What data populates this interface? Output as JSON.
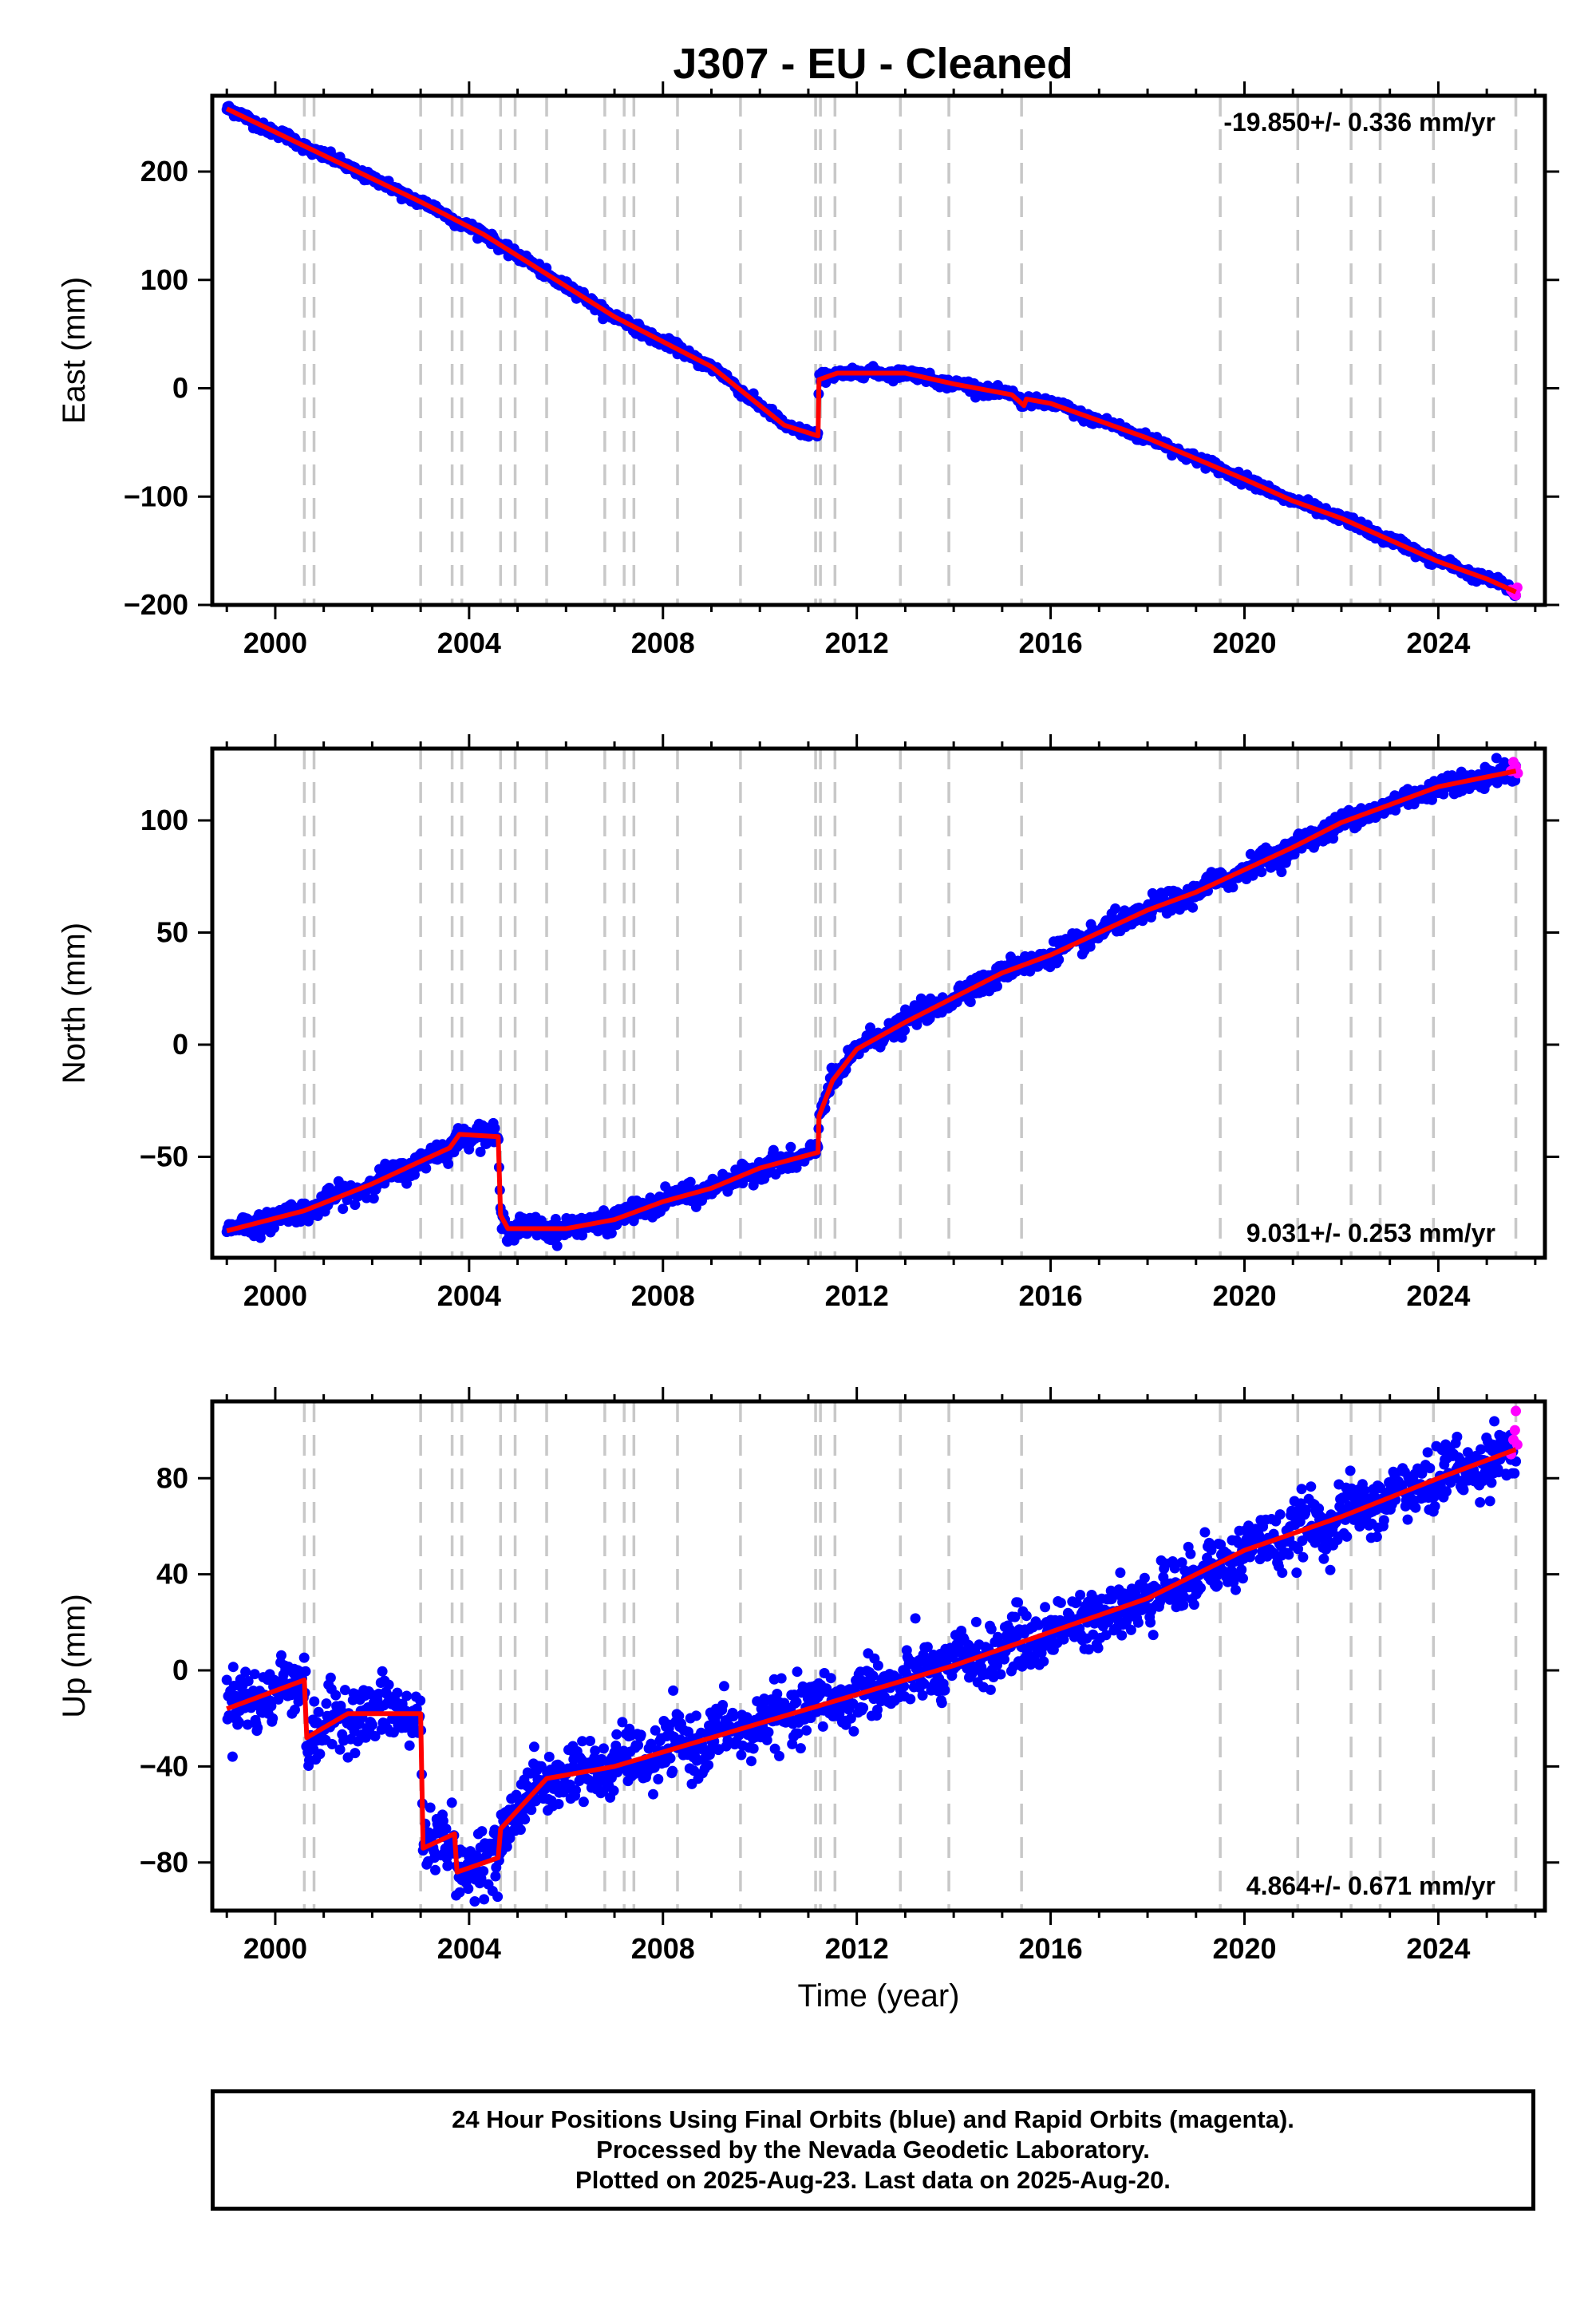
{
  "title": "J307  - EU - Cleaned",
  "footer": {
    "line1": "24 Hour Positions Using Final Orbits (blue) and Rapid Orbits (magenta).",
    "line2": "Processed by the Nevada Geodetic Laboratory.",
    "line3": "Plotted on 2025-Aug-23. Last data on 2025-Aug-20."
  },
  "colors": {
    "final": "#0000ff",
    "rapid": "#ff00ff",
    "model": "#ff0000",
    "events": "#c8c8c8",
    "axes": "#000000"
  },
  "chart_data": [
    {
      "type": "scatter",
      "component": "east",
      "ylabel": "East (mm)",
      "xlabel": "",
      "xlim": [
        1998.7,
        2026.2
      ],
      "ylim": [
        -200,
        270
      ],
      "x_ticks": [
        2000,
        2004,
        2008,
        2012,
        2016,
        2020,
        2024
      ],
      "x_tick_labels": [
        "2000",
        "2004",
        "2008",
        "2012",
        "2016",
        "2020",
        "2024"
      ],
      "y_ticks": [
        -200,
        -100,
        0,
        100,
        200
      ],
      "y_tick_labels": [
        "−200",
        "−100",
        "0",
        "100",
        "200"
      ],
      "rate": "-19.850+/- 0.336 mm/yr",
      "rate_position": "top-right",
      "model_breakpoints": [
        [
          1999.0,
          258
        ],
        [
          2003.0,
          172
        ],
        [
          2004.3,
          142
        ],
        [
          2007.0,
          66
        ],
        [
          2009.0,
          20
        ],
        [
          2010.5,
          -34
        ],
        [
          2011.2,
          -44
        ],
        [
          2011.22,
          8
        ],
        [
          2011.6,
          14
        ],
        [
          2012.2,
          14
        ],
        [
          2013.0,
          14
        ],
        [
          2014.0,
          4
        ],
        [
          2015.2,
          -6
        ],
        [
          2015.45,
          -16
        ],
        [
          2015.5,
          -10
        ],
        [
          2016.0,
          -14
        ],
        [
          2017.0,
          -30
        ],
        [
          2018.0,
          -46
        ],
        [
          2020.0,
          -84
        ],
        [
          2021.0,
          -104
        ],
        [
          2022.0,
          -120
        ],
        [
          2023.0,
          -140
        ],
        [
          2024.0,
          -160
        ],
        [
          2025.0,
          -176
        ],
        [
          2025.6,
          -188
        ]
      ],
      "final_noise_mm": 3,
      "rapid_points": [
        [
          2025.5,
          -186
        ],
        [
          2025.55,
          -189
        ],
        [
          2025.6,
          -191
        ],
        [
          2025.63,
          -184
        ]
      ]
    },
    {
      "type": "scatter",
      "component": "north",
      "ylabel": "North (mm)",
      "xlabel": "",
      "xlim": [
        1998.7,
        2026.2
      ],
      "ylim": [
        -95,
        132
      ],
      "x_ticks": [
        2000,
        2004,
        2008,
        2012,
        2016,
        2020,
        2024
      ],
      "x_tick_labels": [
        "2000",
        "2004",
        "2008",
        "2012",
        "2016",
        "2020",
        "2024"
      ],
      "y_ticks": [
        -50,
        0,
        50,
        100
      ],
      "y_tick_labels": [
        "−50",
        "0",
        "50",
        "100"
      ],
      "rate": "9.031+/- 0.253 mm/yr",
      "rate_position": "bottom-right",
      "model_breakpoints": [
        [
          1999.0,
          -83
        ],
        [
          2000.6,
          -74
        ],
        [
          2002.0,
          -62
        ],
        [
          2003.0,
          -52
        ],
        [
          2003.6,
          -46
        ],
        [
          2003.8,
          -40
        ],
        [
          2004.6,
          -41
        ],
        [
          2004.65,
          -76
        ],
        [
          2004.8,
          -82
        ],
        [
          2006.0,
          -82
        ],
        [
          2007.0,
          -78
        ],
        [
          2008.0,
          -70
        ],
        [
          2009.0,
          -64
        ],
        [
          2010.0,
          -55
        ],
        [
          2011.2,
          -48
        ],
        [
          2011.22,
          -32
        ],
        [
          2011.5,
          -16
        ],
        [
          2012.0,
          -2
        ],
        [
          2013.0,
          10
        ],
        [
          2014.0,
          21
        ],
        [
          2015.0,
          32
        ],
        [
          2016.0,
          40
        ],
        [
          2017.0,
          50
        ],
        [
          2018.0,
          60
        ],
        [
          2019.0,
          68
        ],
        [
          2020.0,
          78
        ],
        [
          2021.0,
          88
        ],
        [
          2022.0,
          99
        ],
        [
          2023.0,
          107
        ],
        [
          2024.0,
          115
        ],
        [
          2025.6,
          122
        ]
      ],
      "final_noise_mm": 3,
      "rapid_points": [
        [
          2025.5,
          122
        ],
        [
          2025.55,
          126
        ],
        [
          2025.6,
          124
        ],
        [
          2025.64,
          121
        ]
      ]
    },
    {
      "type": "scatter",
      "component": "up",
      "ylabel": "Up (mm)",
      "xlabel": "Time (year)",
      "xlim": [
        1998.7,
        2026.2
      ],
      "ylim": [
        -100,
        112
      ],
      "x_ticks": [
        2000,
        2004,
        2008,
        2012,
        2016,
        2020,
        2024
      ],
      "x_tick_labels": [
        "2000",
        "2004",
        "2008",
        "2012",
        "2016",
        "2020",
        "2024"
      ],
      "y_ticks": [
        -80,
        -40,
        0,
        40,
        80
      ],
      "y_tick_labels": [
        "−80",
        "−40",
        "0",
        "40",
        "80"
      ],
      "rate": "4.864+/- 0.671 mm/yr",
      "rate_position": "bottom-right",
      "model_breakpoints": [
        [
          1999.0,
          -16
        ],
        [
          2000.6,
          -4
        ],
        [
          2000.65,
          -28
        ],
        [
          2001.5,
          -18
        ],
        [
          2003.0,
          -18
        ],
        [
          2003.05,
          -74
        ],
        [
          2003.7,
          -68
        ],
        [
          2003.75,
          -84
        ],
        [
          2004.6,
          -78
        ],
        [
          2004.65,
          -66
        ],
        [
          2005.6,
          -45
        ],
        [
          2007.0,
          -40
        ],
        [
          2008.0,
          -34
        ],
        [
          2010.0,
          -22
        ],
        [
          2012.0,
          -10
        ],
        [
          2014.0,
          2
        ],
        [
          2016.0,
          16
        ],
        [
          2018.0,
          30
        ],
        [
          2020.0,
          50
        ],
        [
          2022.0,
          64
        ],
        [
          2024.0,
          80
        ],
        [
          2025.6,
          92
        ]
      ],
      "final_noise_mm": 8,
      "rapid_points": [
        [
          2025.5,
          90
        ],
        [
          2025.55,
          96
        ],
        [
          2025.58,
          100
        ],
        [
          2025.6,
          108
        ],
        [
          2025.63,
          94
        ]
      ]
    }
  ],
  "event_years": [
    2000.6,
    2000.8,
    2003.0,
    2003.65,
    2003.85,
    2004.65,
    2004.95,
    2005.6,
    2006.8,
    2007.2,
    2007.4,
    2008.3,
    2009.6,
    2011.15,
    2011.25,
    2011.55,
    2012.9,
    2013.9,
    2015.4,
    2019.5,
    2021.1,
    2022.2,
    2022.8,
    2023.9,
    2025.6
  ]
}
